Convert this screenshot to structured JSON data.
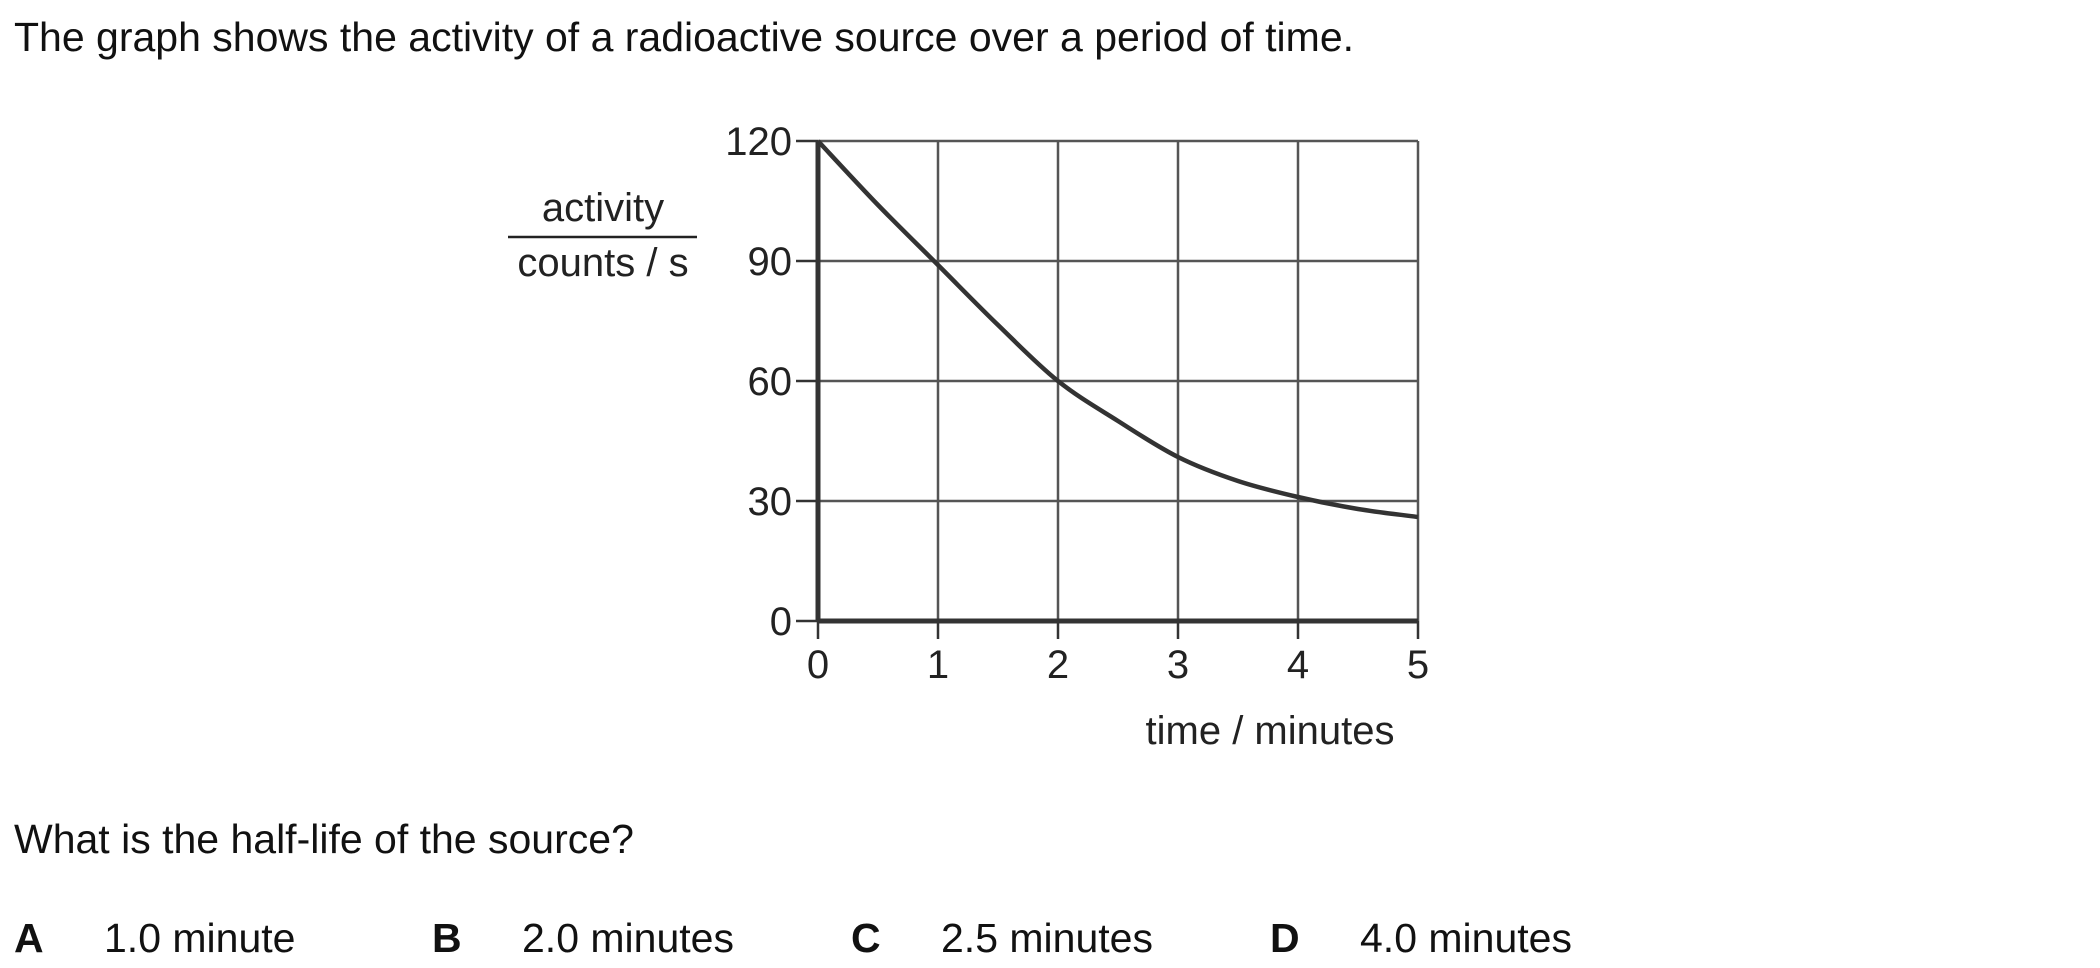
{
  "question": {
    "intro": "The graph shows the activity of a radioactive source over a period of time.",
    "prompt": "What is the half-life of the source?",
    "options": [
      {
        "letter": "A",
        "text": "1.0 minute"
      },
      {
        "letter": "B",
        "text": "2.0 minutes"
      },
      {
        "letter": "C",
        "text": "2.5 minutes"
      },
      {
        "letter": "D",
        "text": "4.0 minutes"
      }
    ]
  },
  "chart_data": {
    "type": "line",
    "title": "",
    "xlabel": "time / minutes",
    "ylabel_top": "activity",
    "ylabel_bottom": "counts / s",
    "xlim": [
      0,
      5
    ],
    "ylim": [
      0,
      120
    ],
    "xticks": [
      0,
      1,
      2,
      3,
      4,
      5
    ],
    "yticks": [
      0,
      30,
      60,
      90,
      120
    ],
    "grid": true,
    "series": [
      {
        "x": [
          0,
          0.5,
          1,
          1.5,
          2,
          2.5,
          3,
          3.5,
          4,
          4.5,
          5
        ],
        "values": [
          120,
          104,
          89,
          74,
          60,
          50,
          41,
          35,
          31,
          28,
          26
        ]
      }
    ],
    "colors": {
      "line": "#333333",
      "grid": "#555555",
      "text": "#222222"
    }
  }
}
